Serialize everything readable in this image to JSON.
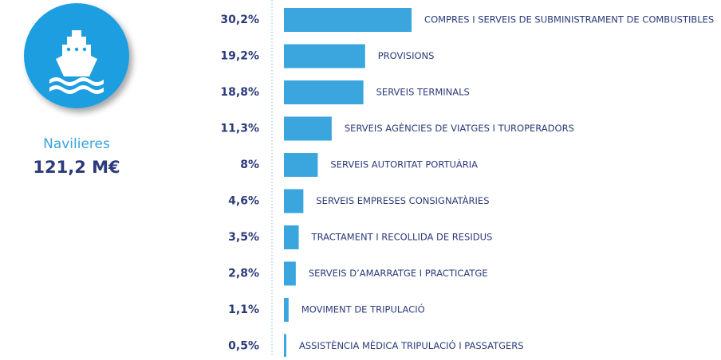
{
  "chart_data": {
    "type": "bar",
    "summary_label": "Navilieres",
    "summary_value": "121,2 M€",
    "categories": [
      "COMPRES I SERVEIS DE SUBMINISTRAMENT DE COMBUSTIBLES",
      "PROVISIONS",
      "SERVEIS TERMINALS",
      "SERVEIS AGÈNCIES DE VIATGES I TUROPERADORS",
      "SERVEIS AUTORITAT PORTUÀRIA",
      "SERVEIS EMPRESES CONSIGNATÀRIES",
      "TRACTAMENT I RECOLLIDA DE RESIDUS",
      "SERVEIS D’AMARRATGE I PRACTICATGE",
      "MOVIMENT DE TRIPULACIÓ",
      "ASSISTÈNCIA MÈDICA TRIPULACIÓ I PASSATGERS"
    ],
    "values": [
      30.2,
      19.2,
      18.8,
      11.3,
      8,
      4.6,
      3.5,
      2.8,
      1.1,
      0.5
    ],
    "value_labels": [
      "30,2%",
      "19,2%",
      "18,8%",
      "11,3%",
      "8%",
      "4,6%",
      "3,5%",
      "2,8%",
      "1,1%",
      "0,5%"
    ],
    "color": "#3ba5dd"
  }
}
